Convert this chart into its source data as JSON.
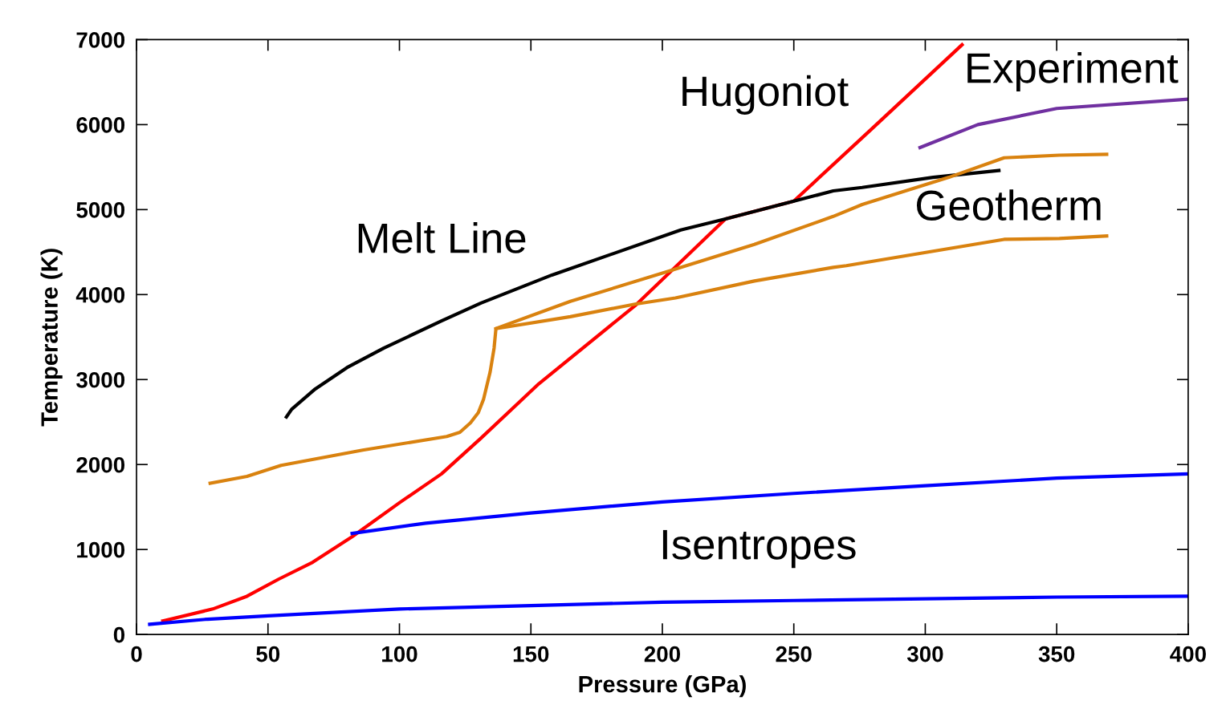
{
  "chart_data": {
    "type": "line",
    "xlabel": "Pressure (GPa)",
    "ylabel": "Temperature (K)",
    "xlim": [
      0,
      400
    ],
    "ylim": [
      0,
      7000
    ],
    "xticks": [
      0,
      50,
      100,
      150,
      200,
      250,
      300,
      350,
      400
    ],
    "yticks": [
      0,
      1000,
      2000,
      3000,
      4000,
      5000,
      6000,
      7000
    ],
    "grid": false,
    "marker": "none",
    "line_style": "solid",
    "series": [
      {
        "color": "#ff0000",
        "x": [
          10,
          29,
          42,
          54,
          67,
          82,
          100,
          116,
          131,
          153,
          190,
          224,
          250,
          280,
          314
        ],
        "values": [
          160,
          300,
          450,
          650,
          850,
          1150,
          1550,
          1890,
          2310,
          2950,
          3880,
          4890,
          5100,
          5960,
          6940
        ]
      },
      {
        "color": "#000000",
        "x": [
          57,
          59,
          68,
          80,
          94,
          116,
          131,
          158,
          207,
          224,
          265,
          276,
          303,
          328
        ],
        "values": [
          2560,
          2650,
          2890,
          3140,
          3370,
          3690,
          3900,
          4230,
          4760,
          4890,
          5220,
          5260,
          5380,
          5460
        ]
      },
      {
        "color": "#d9820f",
        "x": [
          28,
          42,
          55,
          86,
          118,
          123,
          127,
          130,
          132,
          134.5,
          136,
          136.7,
          165,
          190,
          205,
          235,
          265,
          270,
          297,
          330,
          351,
          369
        ],
        "values": [
          1780,
          1860,
          1990,
          2170,
          2330,
          2380,
          2490,
          2610,
          2770,
          3090,
          3370,
          3600,
          3740,
          3890,
          3960,
          4160,
          4320,
          4340,
          4480,
          4650,
          4660,
          4690
        ]
      },
      {
        "color": "#d9820f",
        "x": [
          136.7,
          165,
          204,
          235,
          265,
          276,
          309,
          330,
          351,
          369
        ],
        "values": [
          3600,
          3920,
          4290,
          4590,
          4920,
          5060,
          5380,
          5610,
          5640,
          5650
        ]
      },
      {
        "color": "#0000ff",
        "x": [
          5,
          27,
          50,
          100,
          150,
          200,
          250,
          300,
          350,
          400
        ],
        "values": [
          120,
          180,
          220,
          300,
          340,
          380,
          400,
          420,
          440,
          450
        ]
      },
      {
        "color": "#0000ff",
        "x": [
          82,
          110,
          150,
          200,
          250,
          300,
          350,
          400
        ],
        "values": [
          1190,
          1310,
          1430,
          1560,
          1660,
          1750,
          1840,
          1890
        ]
      },
      {
        "color": "#7030a0",
        "x": [
          298,
          320,
          350,
          400
        ],
        "values": [
          5730,
          6000,
          6190,
          6300
        ]
      }
    ],
    "annotations": [
      "Hugoniot",
      "Melt Line",
      "Geotherm",
      "Experiment",
      "Isentropes"
    ]
  }
}
